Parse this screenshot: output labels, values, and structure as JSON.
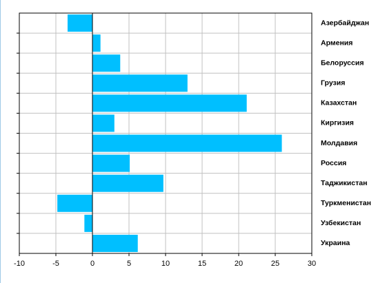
{
  "chart_data": {
    "type": "hbar",
    "categories": [
      "Азербайджан",
      "Армения",
      "Белоруссия",
      "Грузия",
      "Казахстан",
      "Киргизия",
      "Молдавия",
      "Россия",
      "Таджикистан",
      "Туркменистан",
      "Узбекистан",
      "Украина"
    ],
    "values": [
      -3.4,
      1.1,
      3.8,
      13.0,
      21.1,
      3.0,
      25.9,
      5.1,
      9.7,
      -4.8,
      -1.1,
      6.2
    ],
    "color": "#00bfff",
    "xlim": [
      -10,
      30
    ],
    "xticks": [
      -10,
      -5,
      0,
      5,
      10,
      15,
      20,
      25,
      30
    ],
    "grid": true
  }
}
